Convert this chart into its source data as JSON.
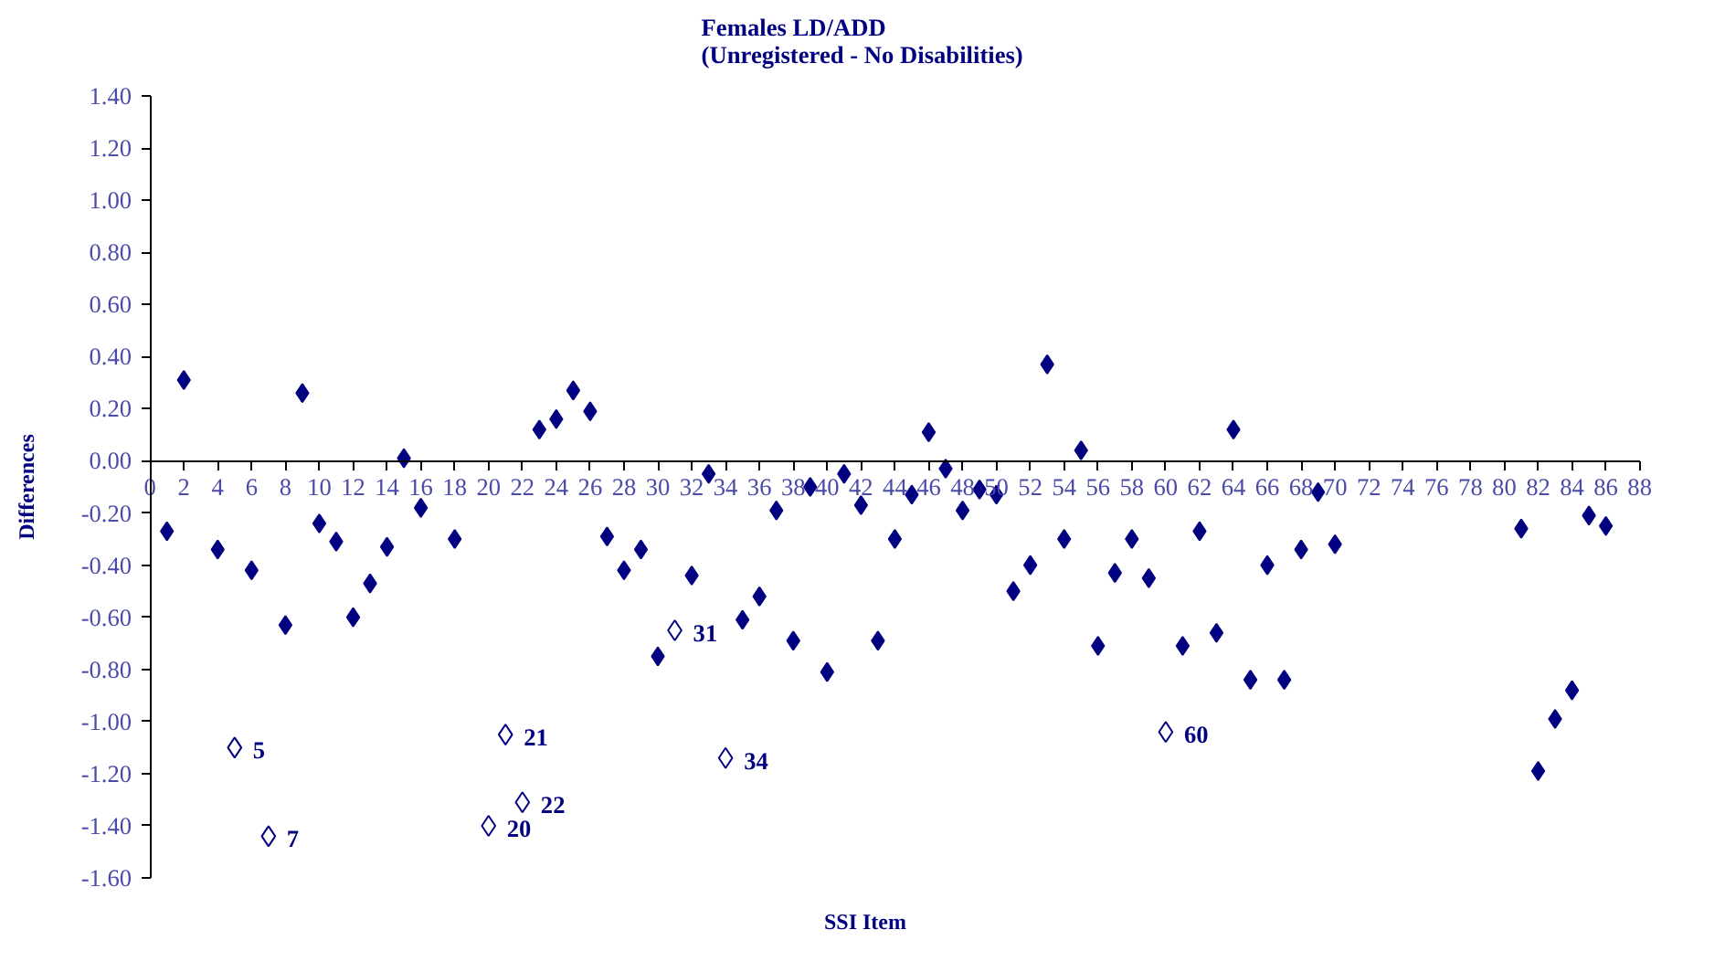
{
  "chart_data": {
    "type": "scatter",
    "title": "Females LD/ADD\n(Unregistered - No  Disabilities)",
    "xlabel": "SSI Item",
    "ylabel": "Differences",
    "xlim": [
      0,
      88
    ],
    "ylim": [
      -1.6,
      1.4
    ],
    "xticks": [
      0,
      2,
      4,
      6,
      8,
      10,
      12,
      14,
      16,
      18,
      20,
      22,
      24,
      26,
      28,
      30,
      32,
      34,
      36,
      38,
      40,
      42,
      44,
      46,
      48,
      50,
      52,
      54,
      56,
      58,
      60,
      62,
      64,
      66,
      68,
      70,
      72,
      74,
      76,
      78,
      80,
      82,
      84,
      86,
      88
    ],
    "yticks": [
      {
        "value": -1.6,
        "label": "-1.60"
      },
      {
        "value": -1.4,
        "label": "-1.40"
      },
      {
        "value": -1.2,
        "label": "-1.20"
      },
      {
        "value": -1.0,
        "label": "-1.00"
      },
      {
        "value": -0.8,
        "label": "-0.80"
      },
      {
        "value": -0.6,
        "label": "-0.60"
      },
      {
        "value": -0.4,
        "label": "-0.40"
      },
      {
        "value": -0.2,
        "label": "-0.20"
      },
      {
        "value": 0,
        "label": "0.00"
      },
      {
        "value": 0.2,
        "label": "0.20"
      },
      {
        "value": 0.4,
        "label": "0.40"
      },
      {
        "value": 0.6,
        "label": "0.60"
      },
      {
        "value": 0.8,
        "label": "0.80"
      },
      {
        "value": 1.0,
        "label": "1.00"
      },
      {
        "value": 1.2,
        "label": "1.20"
      },
      {
        "value": 1.4,
        "label": "1.40"
      }
    ],
    "grid": false,
    "marker": "diamond",
    "series": [
      {
        "color": "#000080",
        "x": [
          1,
          2,
          4,
          6,
          8,
          9,
          10,
          11,
          12,
          13,
          14,
          15,
          16,
          18,
          23,
          24,
          25,
          26,
          27,
          28,
          29,
          30,
          32,
          33,
          35,
          36,
          37,
          38,
          39,
          40,
          41,
          42,
          43,
          44,
          45,
          46,
          47,
          48,
          49,
          50,
          51,
          52,
          53,
          54,
          55,
          56,
          57,
          58,
          59,
          61,
          62,
          63,
          64,
          65,
          66,
          67,
          68,
          69,
          70,
          81,
          82,
          83,
          84,
          85,
          86
        ],
        "values": [
          -0.27,
          0.31,
          -0.34,
          -0.42,
          -0.63,
          0.26,
          -0.24,
          -0.31,
          -0.6,
          -0.47,
          -0.33,
          0.01,
          -0.18,
          -0.3,
          0.12,
          0.16,
          0.27,
          0.19,
          -0.29,
          -0.42,
          -0.34,
          -0.75,
          -0.44,
          -0.05,
          -0.61,
          -0.52,
          -0.19,
          -0.69,
          -0.1,
          -0.81,
          -0.05,
          -0.17,
          -0.69,
          -0.3,
          -0.13,
          0.11,
          -0.03,
          -0.19,
          -0.11,
          -0.13,
          -0.5,
          -0.4,
          0.37,
          -0.3,
          0.04,
          -0.71,
          -0.43,
          -0.3,
          -0.45,
          -0.71,
          -0.27,
          -0.66,
          0.12,
          -0.84,
          -0.4,
          -0.84,
          -0.34,
          -0.12,
          -0.32,
          -0.26,
          -1.19,
          -0.99,
          -0.88,
          -0.21,
          -0.25
        ]
      },
      {
        "color": "#000080",
        "x": [
          5,
          7,
          20,
          21,
          22,
          31,
          34,
          60
        ],
        "values": [
          -1.1,
          -1.44,
          -1.4,
          -1.05,
          -1.31,
          -0.65,
          -1.14,
          -1.04
        ]
      }
    ],
    "annotations": [
      {
        "text": "5",
        "x": 5,
        "y": -1.1
      },
      {
        "text": "7",
        "x": 7,
        "y": -1.44
      },
      {
        "text": "20",
        "x": 20,
        "y": -1.4
      },
      {
        "text": "21",
        "x": 21,
        "y": -1.05
      },
      {
        "text": "22",
        "x": 22,
        "y": -1.31
      },
      {
        "text": "31",
        "x": 31,
        "y": -0.65
      },
      {
        "text": "34",
        "x": 34,
        "y": -1.14
      },
      {
        "text": "60",
        "x": 60,
        "y": -1.04
      }
    ]
  }
}
